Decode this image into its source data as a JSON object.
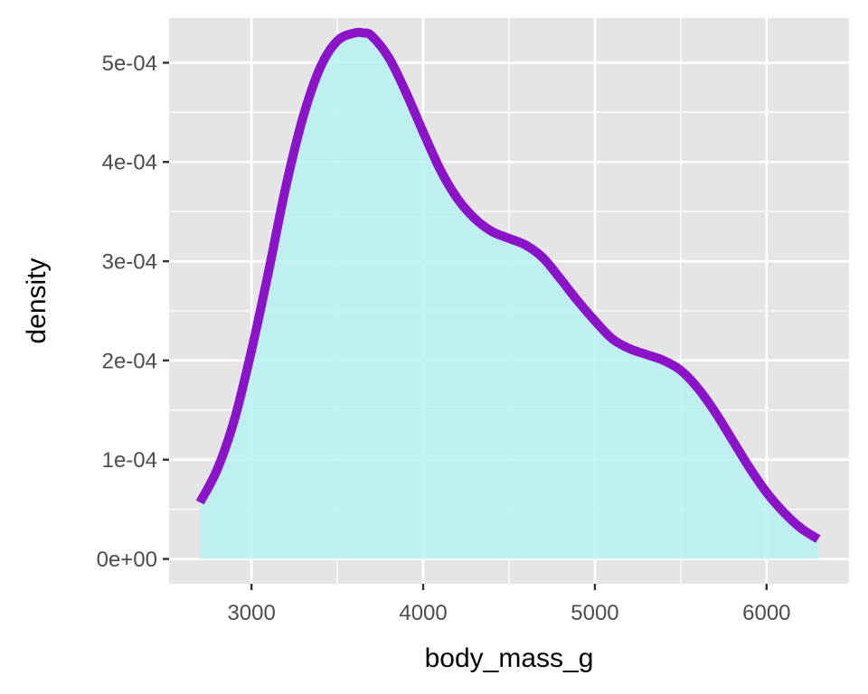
{
  "chart_data": {
    "type": "area",
    "title": "",
    "xlabel": "body_mass_g",
    "ylabel": "density",
    "xlim": [
      2520,
      6480
    ],
    "ylim": [
      -2.5e-05,
      0.000545
    ],
    "x_ticks": [
      3000,
      4000,
      5000,
      6000
    ],
    "x_tick_labels": [
      "3000",
      "4000",
      "5000",
      "6000"
    ],
    "y_ticks": [
      0,
      0.0001,
      0.0002,
      0.0003,
      0.0004,
      0.0005
    ],
    "y_tick_labels": [
      "0e+00",
      "1e-04",
      "2e-04",
      "3e-04",
      "4e-04",
      "5e-04"
    ],
    "x_minor_ticks": [
      2500,
      3500,
      4500,
      5500,
      6500
    ],
    "y_minor_ticks": [
      5e-05,
      0.00015,
      0.00025,
      0.00035,
      0.00045
    ],
    "grid": true,
    "series": [
      {
        "x": [
          2700,
          2800,
          2900,
          3000,
          3100,
          3200,
          3300,
          3400,
          3500,
          3600,
          3650,
          3700,
          3800,
          3900,
          4000,
          4100,
          4200,
          4300,
          4400,
          4500,
          4600,
          4700,
          4800,
          4900,
          5000,
          5100,
          5200,
          5300,
          5400,
          5500,
          5600,
          5700,
          5800,
          5900,
          6000,
          6100,
          6200,
          6300
        ],
        "y": [
          5.7e-05,
          9e-05,
          0.00014,
          0.00021,
          0.00029,
          0.000375,
          0.000445,
          0.000495,
          0.000522,
          0.00053,
          0.00053,
          0.000527,
          0.000505,
          0.00047,
          0.00043,
          0.000392,
          0.000363,
          0.000343,
          0.00033,
          0.000323,
          0.000316,
          0.000303,
          0.000282,
          0.00026,
          0.00024,
          0.000222,
          0.000212,
          0.000206,
          0.0002,
          0.00019,
          0.000172,
          0.000148,
          0.00012,
          9.2e-05,
          6.7e-05,
          4.7e-05,
          3.1e-05,
          2e-05
        ]
      }
    ],
    "colors": {
      "panel": "#e5e5e5",
      "grid": "#ffffff",
      "fill": "#b8f2f2",
      "line": "#8c14c8",
      "tick_text": "#4d4d4d",
      "tick_mark": "#333333",
      "title_text": "#000000"
    }
  }
}
